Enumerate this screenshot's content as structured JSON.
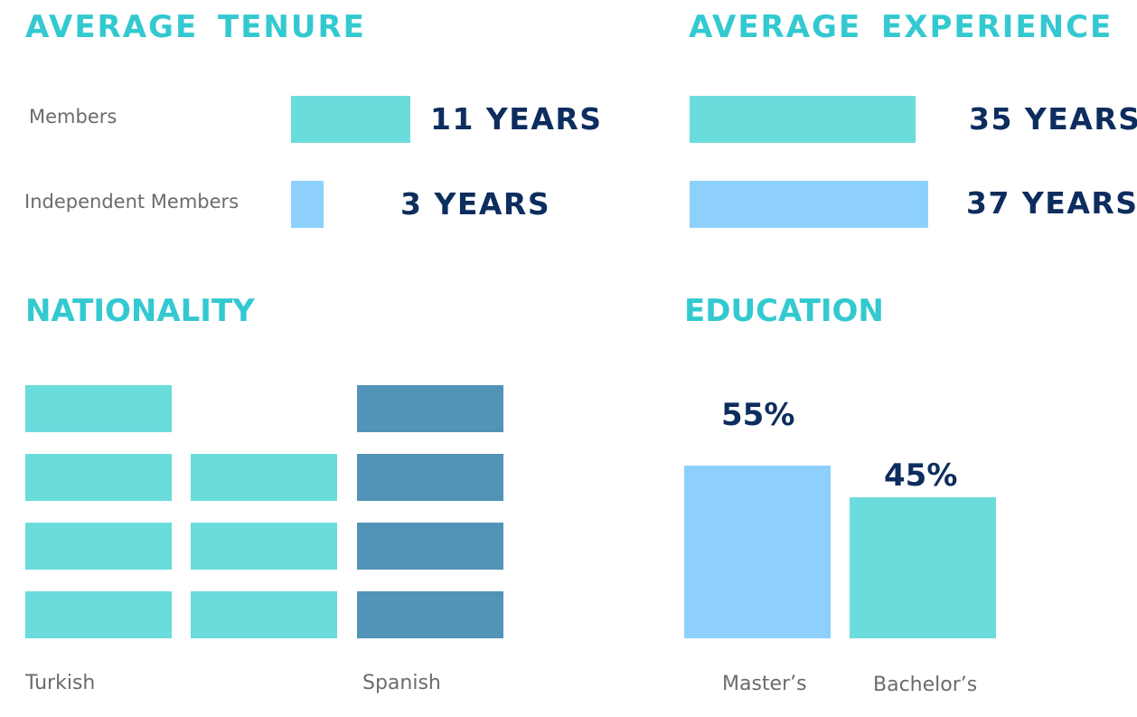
{
  "colors": {
    "title": "#33c9d0",
    "value_text": "#0d2d5e",
    "label_text": "#6b6b6b",
    "teal": "#6bdcdc",
    "light_blue": "#8dd0fc",
    "steel_blue": "#5293b8"
  },
  "chart_data": [
    {
      "type": "bar",
      "orientation": "horizontal",
      "title": "AVERAGE TENURE",
      "categories": [
        "Members",
        "Independent Members"
      ],
      "values": [
        11,
        3
      ],
      "value_labels": [
        "11 YEARS",
        "3 YEARS"
      ],
      "unit": "years",
      "colors": [
        "#6bdcdc",
        "#8dd0fc"
      ]
    },
    {
      "type": "bar",
      "orientation": "horizontal",
      "title": "AVERAGE EXPERIENCE",
      "categories": [
        "Members",
        "Independent Members"
      ],
      "values": [
        35,
        37
      ],
      "value_labels": [
        "35 YEARS",
        "37 YEARS"
      ],
      "unit": "years",
      "colors": [
        "#6bdcdc",
        "#8dd0fc"
      ]
    },
    {
      "type": "bar",
      "title": "NATIONALITY",
      "categories": [
        "Turkish",
        "Spanish"
      ],
      "columns": [
        {
          "label": "Turkish",
          "blocks": 4,
          "color": "#6bdcdc"
        },
        {
          "label": "",
          "blocks": 3,
          "color": "#6bdcdc"
        },
        {
          "label": "Spanish",
          "blocks": 4,
          "color": "#5293b8"
        }
      ],
      "values": [
        7,
        4
      ]
    },
    {
      "type": "bar",
      "title": "EDUCATION",
      "categories": [
        "Master’s",
        "Bachelor’s"
      ],
      "values": [
        55,
        45
      ],
      "value_labels": [
        "55%",
        "45%"
      ],
      "unit": "%",
      "colors": [
        "#8dd0fc",
        "#6bdcdc"
      ]
    }
  ]
}
